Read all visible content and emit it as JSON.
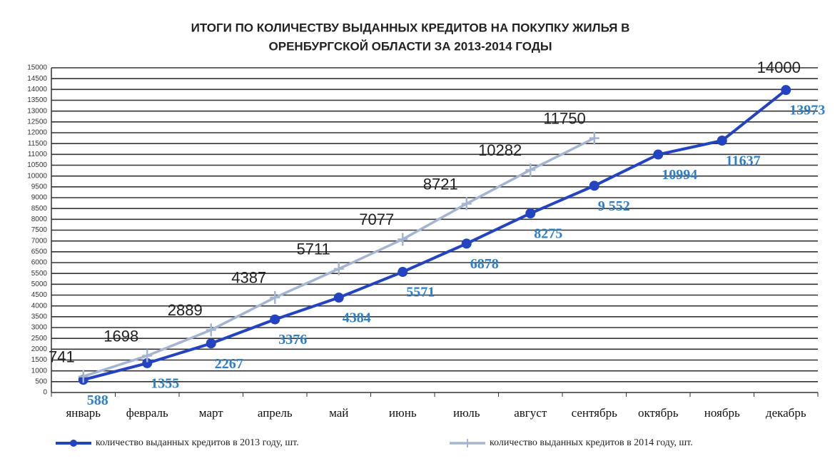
{
  "chart_data": {
    "type": "line",
    "title": [
      "ИТОГИ ПО КОЛИЧЕСТВУ  ВЫДАННЫХ КРЕДИТОВ НА ПОКУПКУ ЖИЛЬЯ В",
      "ОРЕНБУРГСКОЙ  ОБЛАСТИ  ЗА 2013-2014 ГОДЫ"
    ],
    "categories": [
      "январь",
      "февраль",
      "март",
      "апрель",
      "май",
      "июнь",
      "июль",
      "август",
      "сентябрь",
      "октябрь",
      "ноябрь",
      "декабрь"
    ],
    "series": [
      {
        "name": "количество выданных  кредитов в  2013 году, шт.",
        "color": "#2343c0",
        "label_color": "#2e7fc9",
        "values": [
          588,
          1355,
          2267,
          3376,
          4384,
          5571,
          6878,
          8275,
          9552,
          10994,
          11637,
          13973
        ],
        "value_labels": [
          "588",
          "1355",
          "2267",
          "3376",
          "4384",
          "5571",
          "6878",
          "8275",
          "9 552",
          "10994",
          "11637",
          "13973"
        ]
      },
      {
        "name": "количество выданных  кредитов в  2014 году, шт.",
        "color": "#a3b5d1",
        "label_color": "#222222",
        "values": [
          741,
          1698,
          2889,
          4387,
          5711,
          7077,
          8721,
          10282,
          11750,
          null,
          null,
          null
        ]
      }
    ],
    "annotations": [
      {
        "text": "14000"
      }
    ],
    "ylim": [
      0,
      15000
    ],
    "yticks": [
      0,
      500,
      1000,
      1500,
      2000,
      2500,
      3000,
      3500,
      4000,
      4500,
      5000,
      5500,
      6000,
      6500,
      7000,
      7500,
      8000,
      8500,
      9000,
      9500,
      10000,
      10500,
      11000,
      11500,
      12000,
      12500,
      13000,
      13500,
      14000,
      14500,
      15000
    ],
    "grid": true,
    "legend": "bottom"
  }
}
